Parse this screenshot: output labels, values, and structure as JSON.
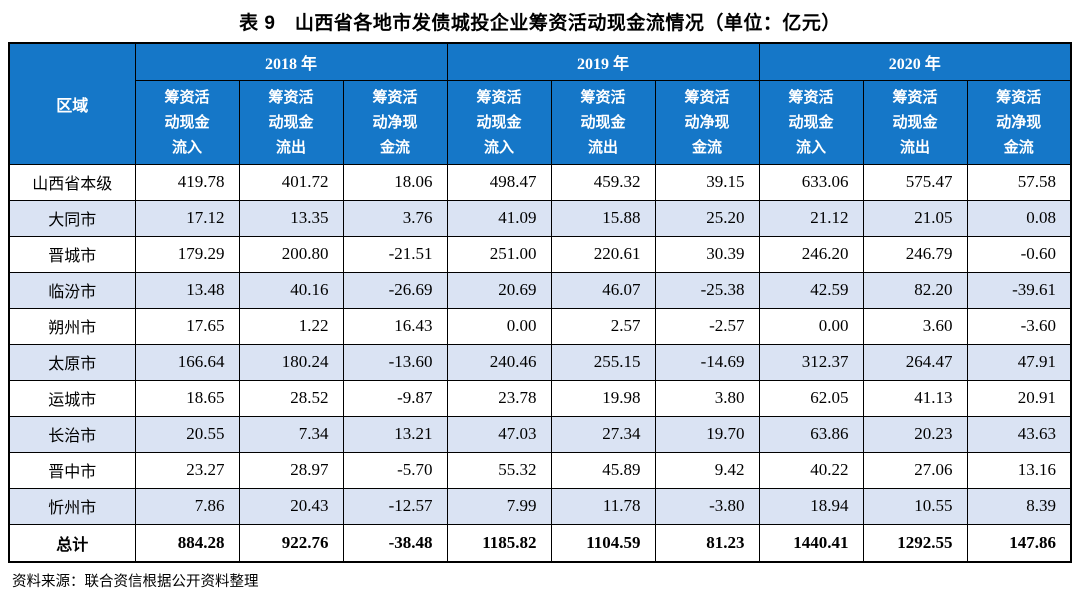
{
  "title": "表 9　山西省各地市发债城投企业筹资活动现金流情况（单位：亿元）",
  "source_note": "资料来源：联合资信根据公开资料整理",
  "colors": {
    "header_bg": "#1577C8",
    "header_text": "#FFFFFF",
    "stripe_bg": "#DAE3F3",
    "border": "#000000"
  },
  "table": {
    "region_header": "区域",
    "year_groups": [
      {
        "label": "2018 年",
        "subcols": [
          "筹资活\n动现金\n流入",
          "筹资活\n动现金\n流出",
          "筹资活\n动净现\n金流"
        ]
      },
      {
        "label": "2019 年",
        "subcols": [
          "筹资活\n动现金\n流入",
          "筹资活\n动现金\n流出",
          "筹资活\n动净现\n金流"
        ]
      },
      {
        "label": "2020 年",
        "subcols": [
          "筹资活\n动现金\n流入",
          "筹资活\n动现金\n流出",
          "筹资活\n动净现\n金流"
        ]
      }
    ],
    "rows": [
      {
        "region": "山西省本级",
        "values": [
          "419.78",
          "401.72",
          "18.06",
          "498.47",
          "459.32",
          "39.15",
          "633.06",
          "575.47",
          "57.58"
        ]
      },
      {
        "region": "大同市",
        "values": [
          "17.12",
          "13.35",
          "3.76",
          "41.09",
          "15.88",
          "25.20",
          "21.12",
          "21.05",
          "0.08"
        ]
      },
      {
        "region": "晋城市",
        "values": [
          "179.29",
          "200.80",
          "-21.51",
          "251.00",
          "220.61",
          "30.39",
          "246.20",
          "246.79",
          "-0.60"
        ]
      },
      {
        "region": "临汾市",
        "values": [
          "13.48",
          "40.16",
          "-26.69",
          "20.69",
          "46.07",
          "-25.38",
          "42.59",
          "82.20",
          "-39.61"
        ]
      },
      {
        "region": "朔州市",
        "values": [
          "17.65",
          "1.22",
          "16.43",
          "0.00",
          "2.57",
          "-2.57",
          "0.00",
          "3.60",
          "-3.60"
        ]
      },
      {
        "region": "太原市",
        "values": [
          "166.64",
          "180.24",
          "-13.60",
          "240.46",
          "255.15",
          "-14.69",
          "312.37",
          "264.47",
          "47.91"
        ]
      },
      {
        "region": "运城市",
        "values": [
          "18.65",
          "28.52",
          "-9.87",
          "23.78",
          "19.98",
          "3.80",
          "62.05",
          "41.13",
          "20.91"
        ]
      },
      {
        "region": "长治市",
        "values": [
          "20.55",
          "7.34",
          "13.21",
          "47.03",
          "27.34",
          "19.70",
          "63.86",
          "20.23",
          "43.63"
        ]
      },
      {
        "region": "晋中市",
        "values": [
          "23.27",
          "28.97",
          "-5.70",
          "55.32",
          "45.89",
          "9.42",
          "40.22",
          "27.06",
          "13.16"
        ]
      },
      {
        "region": "忻州市",
        "values": [
          "7.86",
          "20.43",
          "-12.57",
          "7.99",
          "11.78",
          "-3.80",
          "18.94",
          "10.55",
          "8.39"
        ]
      }
    ],
    "total_row": {
      "region": "总计",
      "values": [
        "884.28",
        "922.76",
        "-38.48",
        "1185.82",
        "1104.59",
        "81.23",
        "1440.41",
        "1292.55",
        "147.86"
      ]
    }
  }
}
